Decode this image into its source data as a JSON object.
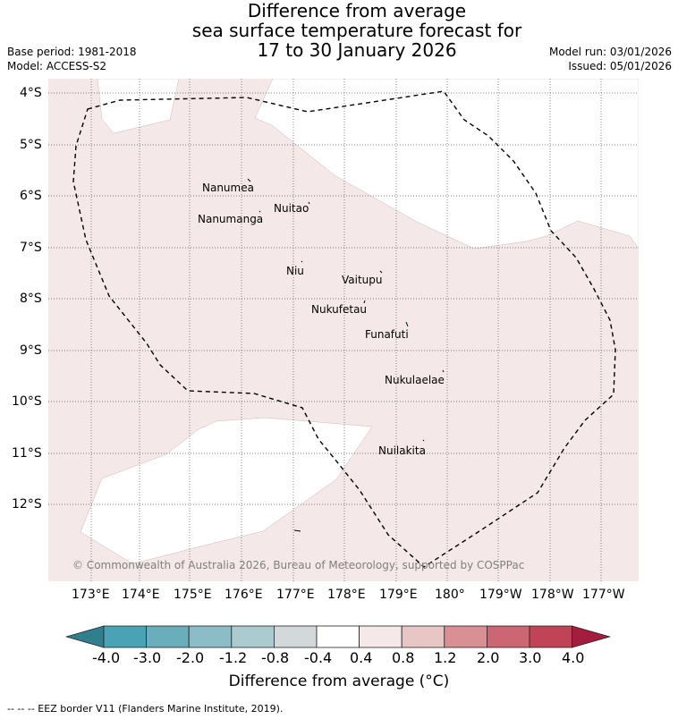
{
  "title": {
    "line1": "Difference from average",
    "line2": "sea surface temperature forecast for",
    "line3": "17 to 30 January 2026"
  },
  "meta": {
    "base_period": "Base period: 1981-2018",
    "model": "Model: ACCESS-S2",
    "model_run": "Model run: 03/01/2026",
    "issued": "Issued: 05/01/2026"
  },
  "lat_labels": [
    "4°S",
    "5°S",
    "6°S",
    "7°S",
    "8°S",
    "9°S",
    "10°S",
    "11°S",
    "12°S"
  ],
  "lon_labels": [
    "173°E",
    "174°E",
    "175°E",
    "176°E",
    "177°E",
    "178°E",
    "179°E",
    "180°",
    "179°W",
    "178°W",
    "177°W"
  ],
  "islands": [
    {
      "name": "Nanumea"
    },
    {
      "name": "Nuitao"
    },
    {
      "name": "Nanumanga"
    },
    {
      "name": "Niu"
    },
    {
      "name": "Vaitupu"
    },
    {
      "name": "Nukufetau"
    },
    {
      "name": "Funafuti"
    },
    {
      "name": "Nukulaelae"
    },
    {
      "name": "Nuilakita"
    }
  ],
  "copyright": "© Commonwealth of Australia 2026, Bureau of Meteorology, supported by COSPPac",
  "colorbar": {
    "ticks": [
      "-4.0",
      "-3.0",
      "-2.0",
      "-1.2",
      "-0.8",
      "-0.4",
      "0.4",
      "0.8",
      "1.2",
      "2.0",
      "3.0",
      "4.0"
    ],
    "colors": [
      "#2f7f8f",
      "#4aa3b5",
      "#6aaebb",
      "#8cbcc6",
      "#aacbd0",
      "#d3d9db",
      "#ffffff",
      "#f4e8e8",
      "#e8c6c5",
      "#d99095",
      "#cc6672",
      "#c04455",
      "#a51d3e"
    ],
    "label": "Difference from average (°C)"
  },
  "footer": "--  --  -- EEZ border V11 (Flanders Marine Institute, 2019).",
  "colors": {
    "anomaly_fill": "#f4e8e8",
    "eez_line": "#000000",
    "grid": "#555555"
  }
}
